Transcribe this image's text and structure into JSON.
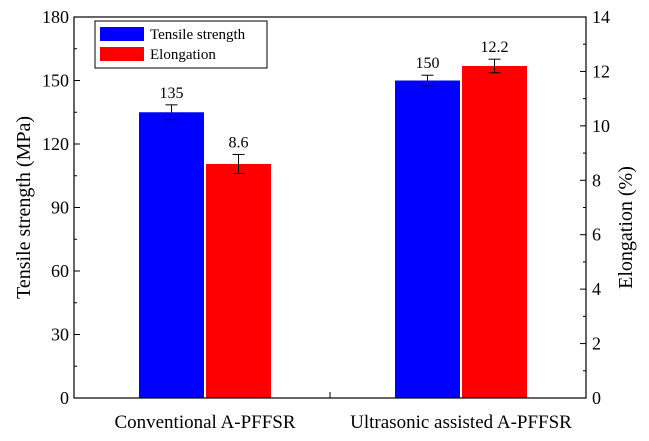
{
  "chart_data": {
    "type": "bar",
    "categories": [
      "Conventional A-PFFSR",
      "Ultrasonic assisted A-PFFSR"
    ],
    "series": [
      {
        "name": "Tensile strength",
        "axis": "left",
        "color": "#0000ff",
        "values": [
          135,
          150
        ],
        "errors": [
          3.5,
          2.5
        ],
        "value_labels": [
          "135",
          "150"
        ]
      },
      {
        "name": "Elongation",
        "axis": "right",
        "color": "#ff0000",
        "values": [
          8.6,
          12.2
        ],
        "errors": [
          0.35,
          0.25
        ],
        "value_labels": [
          "8.6",
          "12.2"
        ]
      }
    ],
    "ylabel": "Tensile strength (MPa)",
    "ylim": [
      0,
      180
    ],
    "yticks": [
      "0",
      "30",
      "60",
      "90",
      "120",
      "150",
      "180"
    ],
    "y2label": "Elongation (%)",
    "y2lim": [
      0,
      14
    ],
    "y2ticks": [
      "0",
      "2",
      "4",
      "6",
      "8",
      "10",
      "12",
      "14"
    ],
    "legend": {
      "position": "top-left",
      "items": [
        "Tensile strength",
        "Elongation"
      ]
    },
    "grid": false
  }
}
